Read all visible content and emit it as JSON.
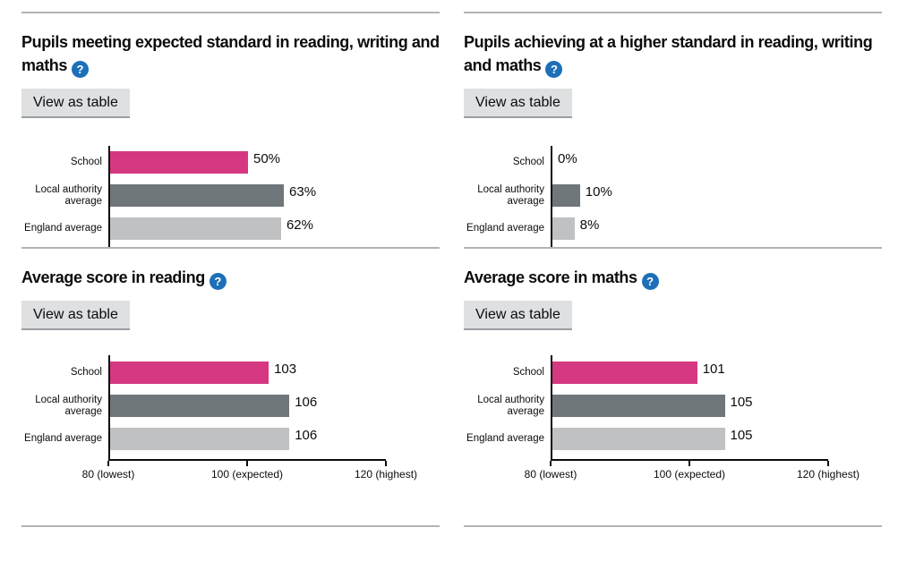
{
  "buttons": {
    "view_as_table": "View as table"
  },
  "icons": {
    "help_glyph": "?"
  },
  "palette": {
    "bar_colors": [
      "#d53880",
      "#6f777b",
      "#bfc1c3"
    ],
    "help_icon_bg": "#1d70b8",
    "divider": "#b1b4b6",
    "axis": "#0b0c0c",
    "text": "#0b0c0c",
    "button_bg": "#dee0e2",
    "button_shadow": "#9b9ea1"
  },
  "chart_data": [
    {
      "type": "bar",
      "orientation": "horizontal",
      "title": "Pupils meeting expected standard in reading, writing and maths",
      "categories": [
        "School",
        "Local authority average",
        "England average"
      ],
      "values": [
        50,
        63,
        62
      ],
      "data_labels": [
        "50%",
        "63%",
        "62%"
      ],
      "unit": "%",
      "xlim": [
        0,
        100
      ],
      "x_ticks": []
    },
    {
      "type": "bar",
      "orientation": "horizontal",
      "title": "Pupils achieving at a higher standard in reading, writing and maths",
      "categories": [
        "School",
        "Local authority average",
        "England average"
      ],
      "values": [
        0,
        10,
        8
      ],
      "data_labels": [
        "0%",
        "10%",
        "8%"
      ],
      "unit": "%",
      "xlim": [
        0,
        100
      ],
      "x_ticks": []
    },
    {
      "type": "bar",
      "orientation": "horizontal",
      "title": "Average score in reading",
      "categories": [
        "School",
        "Local authority average",
        "England average"
      ],
      "values": [
        103,
        106,
        106
      ],
      "data_labels": [
        "103",
        "106",
        "106"
      ],
      "unit": "scaled score",
      "xlim": [
        80,
        120
      ],
      "x_ticks": [
        "80 (lowest)",
        "100 (expected)",
        "120 (highest)"
      ]
    },
    {
      "type": "bar",
      "orientation": "horizontal",
      "title": "Average score in maths",
      "categories": [
        "School",
        "Local authority average",
        "England average"
      ],
      "values": [
        101,
        105,
        105
      ],
      "data_labels": [
        "101",
        "105",
        "105"
      ],
      "unit": "scaled score",
      "xlim": [
        80,
        120
      ],
      "x_ticks": [
        "80 (lowest)",
        "100 (expected)",
        "120 (highest)"
      ]
    }
  ]
}
